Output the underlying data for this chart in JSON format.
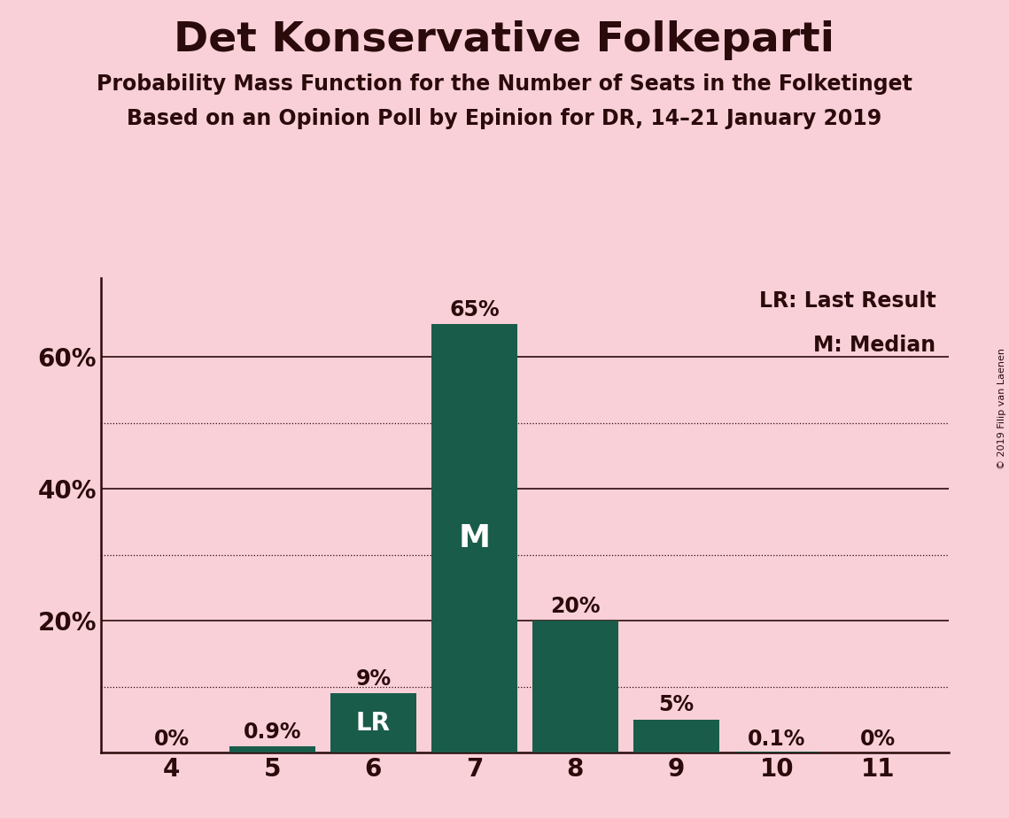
{
  "title": "Det Konservative Folkeparti",
  "subtitle1": "Probability Mass Function for the Number of Seats in the Folketinget",
  "subtitle2": "Based on an Opinion Poll by Epinion for DR, 14–21 January 2019",
  "copyright_text": "© 2019 Filip van Laenen",
  "seats": [
    4,
    5,
    6,
    7,
    8,
    9,
    10,
    11
  ],
  "probabilities": [
    0.0,
    0.009,
    0.09,
    0.65,
    0.2,
    0.05,
    0.001,
    0.0
  ],
  "prob_labels": [
    "0%",
    "0.9%",
    "9%",
    "65%",
    "20%",
    "5%",
    "0.1%",
    "0%"
  ],
  "bar_color": "#1a5c4a",
  "background_color": "#f9d0d8",
  "text_color": "#2a0a0a",
  "white_text": "#ffffff",
  "median_seat": 7,
  "lr_seat": 6,
  "legend_lr": "LR: Last Result",
  "legend_m": "M: Median",
  "ylim": [
    0,
    0.72
  ],
  "ytick_labeled": [
    0.2,
    0.4,
    0.6
  ],
  "ytick_label_strs": [
    "20%",
    "40%",
    "60%"
  ],
  "solid_grid": [
    0.2,
    0.4,
    0.6
  ],
  "dotted_grid": [
    0.1,
    0.3,
    0.5
  ]
}
